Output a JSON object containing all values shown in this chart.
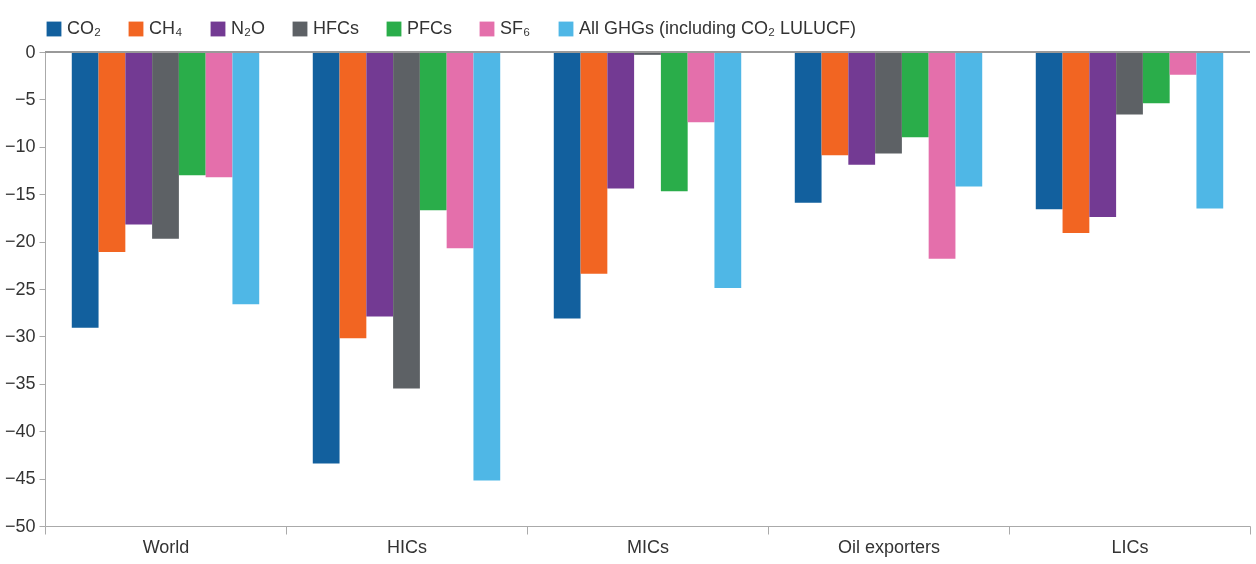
{
  "chart_data": {
    "type": "bar",
    "categories": [
      "World",
      "HICs",
      "MICs",
      "Oil exporters",
      "LICs"
    ],
    "series": [
      {
        "name": "CO₂",
        "color": "#12609e",
        "values": [
          -29.1,
          -43.4,
          -28.1,
          -15.9,
          -16.6
        ]
      },
      {
        "name": "CH₄",
        "color": "#f26522",
        "values": [
          -21.1,
          -30.2,
          -23.4,
          -10.9,
          -19.1
        ]
      },
      {
        "name": "N₂O",
        "color": "#733a93",
        "values": [
          -18.2,
          -27.9,
          -14.4,
          -11.9,
          -17.4
        ]
      },
      {
        "name": "HFCs",
        "color": "#5d6165",
        "values": [
          -19.7,
          -35.5,
          -0.3,
          -10.7,
          -6.6
        ]
      },
      {
        "name": "PFCs",
        "color": "#2aad4a",
        "values": [
          -13.0,
          -16.7,
          -14.7,
          -9.0,
          -5.4
        ]
      },
      {
        "name": "SF₆",
        "color": "#e46fab",
        "values": [
          -13.2,
          -20.7,
          -7.4,
          -21.8,
          -2.4
        ]
      },
      {
        "name": "All GHGs (including CO₂ LULUCF)",
        "color": "#4fb7e6",
        "values": [
          -26.6,
          -45.2,
          -24.9,
          -14.2,
          -16.5
        ]
      }
    ],
    "ylim": [
      -50,
      0
    ],
    "yticks": [
      -50,
      -45,
      -40,
      -35,
      -30,
      -25,
      -20,
      -15,
      -10,
      -5,
      0
    ],
    "ref_lines": [
      {
        "axis": "y",
        "value": 0
      }
    ],
    "grid": false,
    "legend": "top"
  }
}
